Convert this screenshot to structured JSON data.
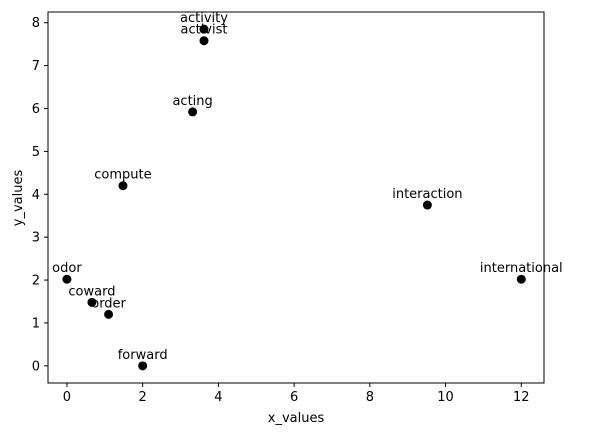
{
  "chart_data": {
    "type": "scatter",
    "title": "",
    "xlabel": "x_values",
    "ylabel": "y_values",
    "xlim": [
      -0.5,
      12.6
    ],
    "ylim": [
      -0.4,
      8.25
    ],
    "xticks": [
      0,
      2,
      4,
      6,
      8,
      10,
      12
    ],
    "yticks": [
      0,
      1,
      2,
      3,
      4,
      5,
      6,
      7,
      8
    ],
    "grid": false,
    "marker_color": "#000000",
    "points": [
      {
        "label": "activity",
        "x": 3.62,
        "y": 7.85
      },
      {
        "label": "activist",
        "x": 3.62,
        "y": 7.58
      },
      {
        "label": "acting",
        "x": 3.32,
        "y": 5.92
      },
      {
        "label": "compute",
        "x": 1.48,
        "y": 4.2
      },
      {
        "label": "interaction",
        "x": 9.52,
        "y": 3.75
      },
      {
        "label": "odor",
        "x": 0.0,
        "y": 2.02
      },
      {
        "label": "international",
        "x": 12.0,
        "y": 2.02
      },
      {
        "label": "coward",
        "x": 0.66,
        "y": 1.48
      },
      {
        "label": "order",
        "x": 1.1,
        "y": 1.2
      },
      {
        "label": "forward",
        "x": 2.0,
        "y": 0.0
      }
    ]
  }
}
